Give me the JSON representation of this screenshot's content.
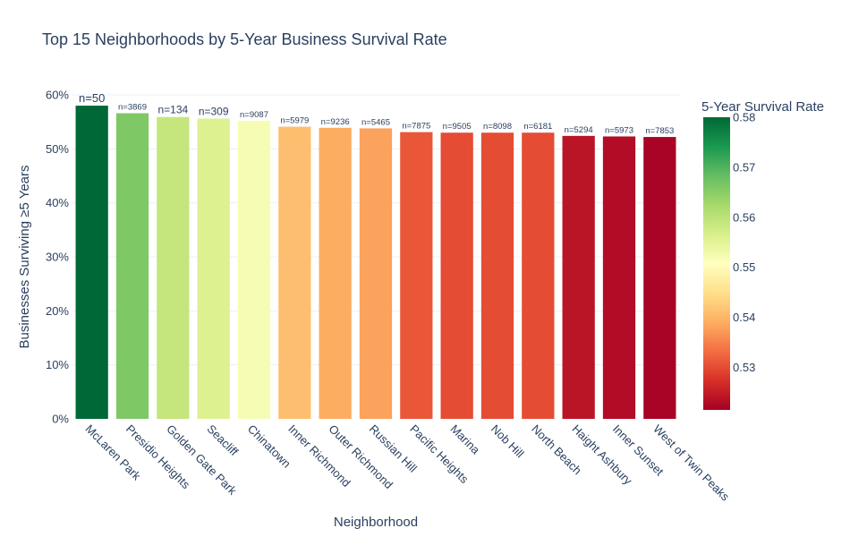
{
  "chart_data": {
    "type": "bar",
    "title": "Top 15 Neighborhoods by 5-Year Business Survival Rate",
    "xlabel": "Neighborhood",
    "ylabel": "Businesses Surviving ≥5 Years",
    "ylim": [
      0,
      0.6
    ],
    "y_ticks": [
      0,
      0.1,
      0.2,
      0.3,
      0.4,
      0.5,
      0.6
    ],
    "y_tick_labels": [
      "0%",
      "10%",
      "20%",
      "30%",
      "40%",
      "50%",
      "60%"
    ],
    "grid": true,
    "categories": [
      "McLaren Park",
      "Presidio Heights",
      "Golden Gate Park",
      "Seacliff",
      "Chinatown",
      "Inner Richmond",
      "Outer Richmond",
      "Russian Hill",
      "Pacific Heights",
      "Marina",
      "Nob Hill",
      "North Beach",
      "Haight Ashbury",
      "Inner Sunset",
      "West of Twin Peaks"
    ],
    "values": [
      0.58,
      0.566,
      0.559,
      0.556,
      0.552,
      0.541,
      0.539,
      0.538,
      0.531,
      0.53,
      0.53,
      0.53,
      0.524,
      0.523,
      0.522
    ],
    "bar_labels": [
      "n=50",
      "n=3869",
      "n=134",
      "n=309",
      "n=9087",
      "n=5979",
      "n=9236",
      "n=5465",
      "n=7875",
      "n=9505",
      "n=8098",
      "n=6181",
      "n=5294",
      "n=5973",
      "n=7853"
    ],
    "colorbar": {
      "title": "5-Year Survival Rate",
      "colorscale": "RdYlGn",
      "range": [
        0.5215,
        0.58
      ],
      "ticks": [
        0.53,
        0.54,
        0.55,
        0.56,
        0.57,
        0.58
      ],
      "tick_labels": [
        "0.53",
        "0.54",
        "0.55",
        "0.56",
        "0.57",
        "0.58"
      ]
    }
  }
}
